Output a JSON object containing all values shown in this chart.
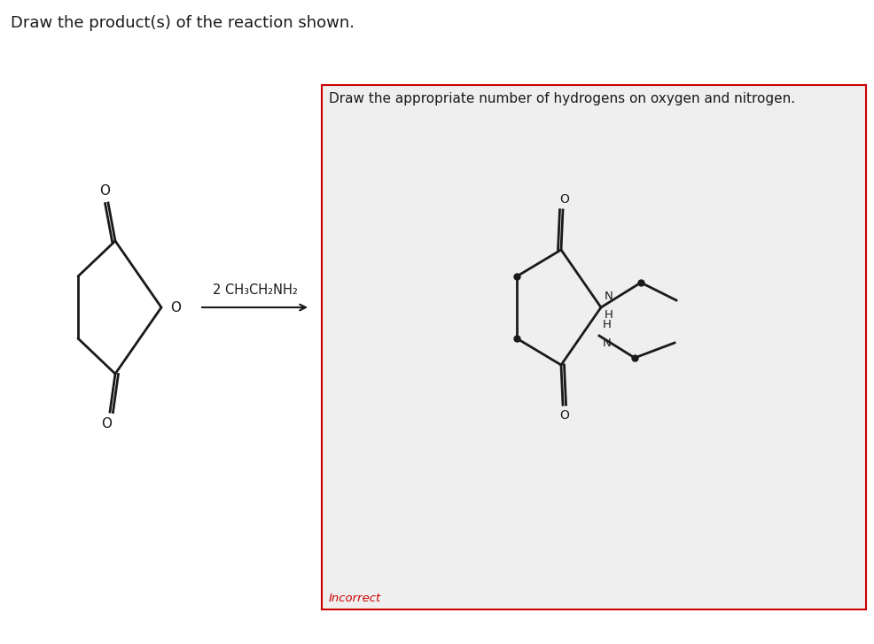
{
  "title_text": "Draw the product(s) of the reaction shown.",
  "instruction_text": "Draw the appropriate number of hydrogens on oxygen and nitrogen.",
  "reagent_text": "2 CH₃CH₂NH₂",
  "incorrect_text": "Incorrect",
  "background_color": "#ffffff",
  "box_background": "#efefef",
  "box_border_color": "#cc0000",
  "font_color": "#1a1a1a",
  "line_color": "#1a1a1a",
  "line_width": 2.0
}
